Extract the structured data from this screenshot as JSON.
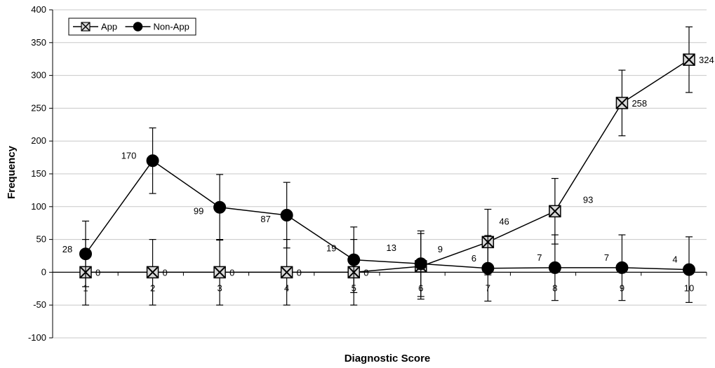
{
  "chart_data": {
    "type": "line",
    "title": "",
    "xlabel": "Diagnostic Score",
    "ylabel": "Frequency",
    "categories": [
      "1",
      "2",
      "3",
      "4",
      "5",
      "6",
      "7",
      "8",
      "9",
      "10"
    ],
    "ylim": [
      -100,
      400
    ],
    "ytick_step": 50,
    "grid": true,
    "legend_position": "top-left",
    "series": [
      {
        "name": "App",
        "marker": "boxed-x",
        "values": [
          0,
          0,
          0,
          0,
          0,
          9,
          46,
          93,
          258,
          324
        ],
        "error": 50,
        "labels": [
          "0",
          "0",
          "0",
          "0",
          "0",
          "9",
          "46",
          "93",
          "258",
          "324"
        ]
      },
      {
        "name": "Non-App",
        "marker": "filled-circle",
        "values": [
          28,
          170,
          99,
          87,
          19,
          13,
          6,
          7,
          7,
          4
        ],
        "error": 50,
        "labels": [
          "28",
          "170",
          "99",
          "87",
          "19",
          "13",
          "6",
          "7",
          "7",
          "4"
        ]
      }
    ],
    "colors": {
      "line": "#000000",
      "grid": "#c8c8c8",
      "marker_box": "#d9d9d9"
    }
  }
}
